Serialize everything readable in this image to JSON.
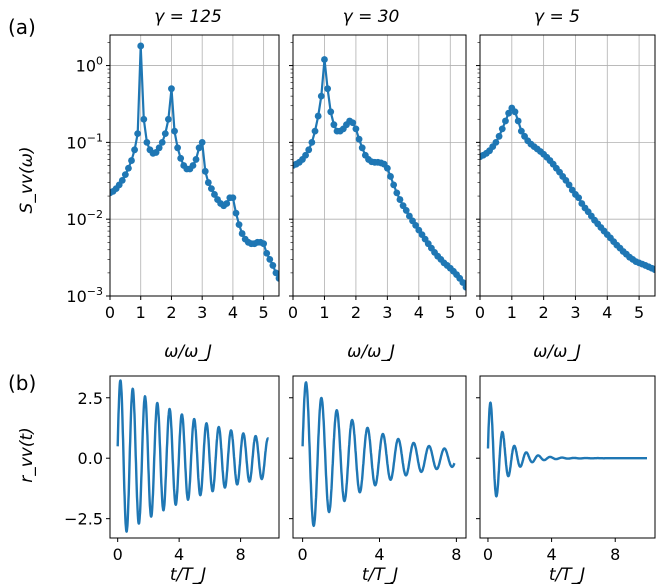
{
  "figure": {
    "panel_a_label": "(a)",
    "panel_b_label": "(b)"
  },
  "chart_data": [
    {
      "type": "line",
      "panel": "a",
      "title": "γ = 125",
      "xlabel": "ω/ω_J",
      "ylabel": "S_vv(ω)",
      "xlim": [
        0,
        5.5
      ],
      "ylim": [
        0.001,
        2.5
      ],
      "yscale": "log",
      "grid": true,
      "markers": true,
      "color": "#1f77b4",
      "xticks": [
        "0",
        "1",
        "2",
        "3",
        "4",
        "5"
      ],
      "yticks": [
        "10^-3",
        "10^-2",
        "10^-1",
        "10^0"
      ],
      "x": [
        0.0,
        0.1,
        0.2,
        0.3,
        0.4,
        0.5,
        0.6,
        0.7,
        0.8,
        0.9,
        1.0,
        1.1,
        1.2,
        1.3,
        1.4,
        1.5,
        1.6,
        1.7,
        1.8,
        1.9,
        2.0,
        2.1,
        2.2,
        2.3,
        2.4,
        2.5,
        2.6,
        2.7,
        2.8,
        2.9,
        3.0,
        3.1,
        3.2,
        3.3,
        3.4,
        3.5,
        3.6,
        3.7,
        3.8,
        3.9,
        4.0,
        4.1,
        4.2,
        4.3,
        4.4,
        4.5,
        4.6,
        4.7,
        4.8,
        4.9,
        5.0,
        5.1,
        5.2,
        5.3,
        5.4,
        5.5
      ],
      "values": [
        0.022,
        0.023,
        0.025,
        0.028,
        0.032,
        0.038,
        0.046,
        0.058,
        0.08,
        0.13,
        1.8,
        0.2,
        0.1,
        0.08,
        0.072,
        0.074,
        0.085,
        0.1,
        0.13,
        0.2,
        0.5,
        0.14,
        0.085,
        0.062,
        0.05,
        0.045,
        0.045,
        0.05,
        0.06,
        0.085,
        0.1,
        0.042,
        0.03,
        0.025,
        0.021,
        0.018,
        0.016,
        0.015,
        0.016,
        0.019,
        0.019,
        0.012,
        0.0085,
        0.0065,
        0.0055,
        0.005,
        0.0048,
        0.0048,
        0.005,
        0.005,
        0.0048,
        0.0036,
        0.003,
        0.0025,
        0.002,
        0.0017
      ]
    },
    {
      "type": "line",
      "panel": "a",
      "title": "γ = 30",
      "xlabel": "ω/ω_J",
      "xlim": [
        0,
        5.5
      ],
      "ylim": [
        0.001,
        2.5
      ],
      "yscale": "log",
      "grid": true,
      "markers": true,
      "color": "#1f77b4",
      "xticks": [
        "0",
        "1",
        "2",
        "3",
        "4",
        "5"
      ],
      "x": [
        0.0,
        0.1,
        0.2,
        0.3,
        0.4,
        0.5,
        0.6,
        0.7,
        0.8,
        0.9,
        1.0,
        1.1,
        1.2,
        1.3,
        1.4,
        1.5,
        1.6,
        1.7,
        1.8,
        1.9,
        2.0,
        2.1,
        2.2,
        2.3,
        2.4,
        2.5,
        2.6,
        2.7,
        2.8,
        2.9,
        3.0,
        3.1,
        3.2,
        3.3,
        3.4,
        3.5,
        3.6,
        3.7,
        3.8,
        3.9,
        4.0,
        4.1,
        4.2,
        4.3,
        4.4,
        4.5,
        4.6,
        4.7,
        4.8,
        4.9,
        5.0,
        5.1,
        5.2,
        5.3,
        5.4,
        5.5
      ],
      "values": [
        0.05,
        0.052,
        0.055,
        0.06,
        0.068,
        0.08,
        0.1,
        0.14,
        0.22,
        0.4,
        1.2,
        0.5,
        0.25,
        0.17,
        0.14,
        0.14,
        0.15,
        0.17,
        0.19,
        0.18,
        0.15,
        0.11,
        0.085,
        0.068,
        0.06,
        0.056,
        0.055,
        0.055,
        0.054,
        0.052,
        0.046,
        0.036,
        0.028,
        0.022,
        0.018,
        0.015,
        0.013,
        0.011,
        0.0095,
        0.0083,
        0.0072,
        0.0063,
        0.0055,
        0.0048,
        0.0042,
        0.0037,
        0.0033,
        0.003,
        0.0027,
        0.0025,
        0.0023,
        0.0021,
        0.0019,
        0.0017,
        0.0015,
        0.0013
      ]
    },
    {
      "type": "line",
      "panel": "a",
      "title": "γ = 5",
      "xlabel": "ω/ω_J",
      "xlim": [
        0,
        5.5
      ],
      "ylim": [
        0.001,
        2.5
      ],
      "yscale": "log",
      "grid": true,
      "markers": true,
      "color": "#1f77b4",
      "xticks": [
        "0",
        "1",
        "2",
        "3",
        "4",
        "5"
      ],
      "x": [
        0.0,
        0.1,
        0.2,
        0.3,
        0.4,
        0.5,
        0.6,
        0.7,
        0.8,
        0.9,
        1.0,
        1.1,
        1.2,
        1.3,
        1.4,
        1.5,
        1.6,
        1.7,
        1.8,
        1.9,
        2.0,
        2.1,
        2.2,
        2.3,
        2.4,
        2.5,
        2.6,
        2.7,
        2.8,
        2.9,
        3.0,
        3.1,
        3.2,
        3.3,
        3.4,
        3.5,
        3.6,
        3.7,
        3.8,
        3.9,
        4.0,
        4.1,
        4.2,
        4.3,
        4.4,
        4.5,
        4.6,
        4.7,
        4.8,
        4.9,
        5.0,
        5.1,
        5.2,
        5.3,
        5.4,
        5.5
      ],
      "values": [
        0.065,
        0.068,
        0.072,
        0.078,
        0.088,
        0.1,
        0.12,
        0.15,
        0.19,
        0.24,
        0.28,
        0.25,
        0.19,
        0.14,
        0.12,
        0.105,
        0.095,
        0.088,
        0.082,
        0.076,
        0.07,
        0.064,
        0.058,
        0.052,
        0.046,
        0.041,
        0.036,
        0.032,
        0.028,
        0.024,
        0.021,
        0.019,
        0.016,
        0.014,
        0.0125,
        0.011,
        0.0097,
        0.0087,
        0.0078,
        0.007,
        0.0063,
        0.0057,
        0.0051,
        0.0046,
        0.0042,
        0.0038,
        0.0035,
        0.0032,
        0.003,
        0.0028,
        0.0027,
        0.0026,
        0.0025,
        0.0024,
        0.0023,
        0.0022
      ]
    },
    {
      "type": "line",
      "panel": "b",
      "xlabel": "t/T_J",
      "ylabel": "r_vv(t)",
      "xlim": [
        -0.5,
        10.5
      ],
      "ylim": [
        -3.3,
        3.4
      ],
      "grid": false,
      "color": "#1f77b4",
      "xticks": [
        "0",
        "4",
        "8"
      ],
      "yticks": [
        "−2.5",
        "0.0",
        "2.5"
      ],
      "t_max": 9.8,
      "amplitude": 3.3,
      "decay_time": 7.0,
      "period": 0.8
    },
    {
      "type": "line",
      "panel": "b",
      "xlabel": "t/T_J",
      "xlim": [
        -0.5,
        8.5
      ],
      "ylim": [
        -3.3,
        3.4
      ],
      "grid": false,
      "color": "#1f77b4",
      "xticks": [
        "0",
        "4",
        "8"
      ],
      "t_max": 7.9,
      "amplitude": 3.3,
      "decay_time": 3.5,
      "period": 0.8
    },
    {
      "type": "line",
      "panel": "b",
      "xlabel": "t/T_J",
      "xlim": [
        -0.5,
        10.5
      ],
      "ylim": [
        -3.3,
        3.4
      ],
      "grid": false,
      "color": "#1f77b4",
      "xticks": [
        "0",
        "4",
        "8"
      ],
      "t_max": 10.0,
      "amplitude": 2.7,
      "decay_time": 1.0,
      "period": 0.75
    }
  ]
}
